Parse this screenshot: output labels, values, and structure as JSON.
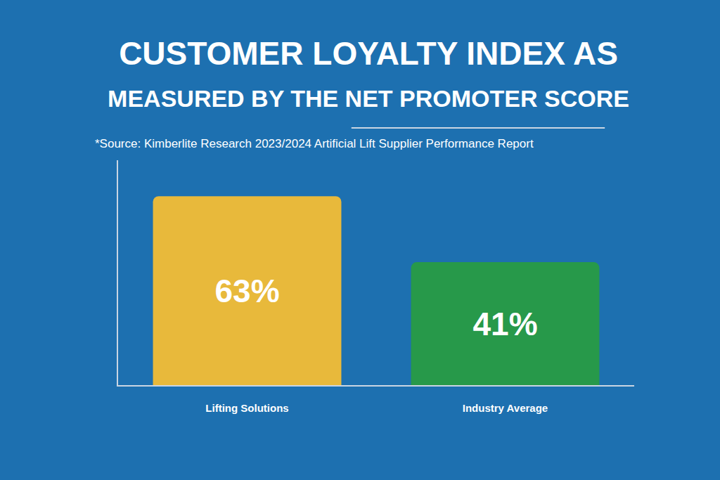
{
  "chart_data": {
    "type": "bar",
    "title": "CUSTOMER LOYALTY INDEX AS\nMEASURED BY THE NET PROMOTER SCORE",
    "subtitle": "*Source: Kimberlite Research 2023/2024 Artificial Lift Supplier Performance Report",
    "categories": [
      "Lifting Solutions",
      "Industry Average"
    ],
    "values": [
      63,
      41
    ],
    "value_labels": [
      "63%",
      "41%"
    ],
    "colors": [
      "#e8b93b",
      "#27994a"
    ],
    "ylim": [
      0,
      75
    ],
    "tick_labels": "x",
    "data_labels": true,
    "grid": false
  }
}
